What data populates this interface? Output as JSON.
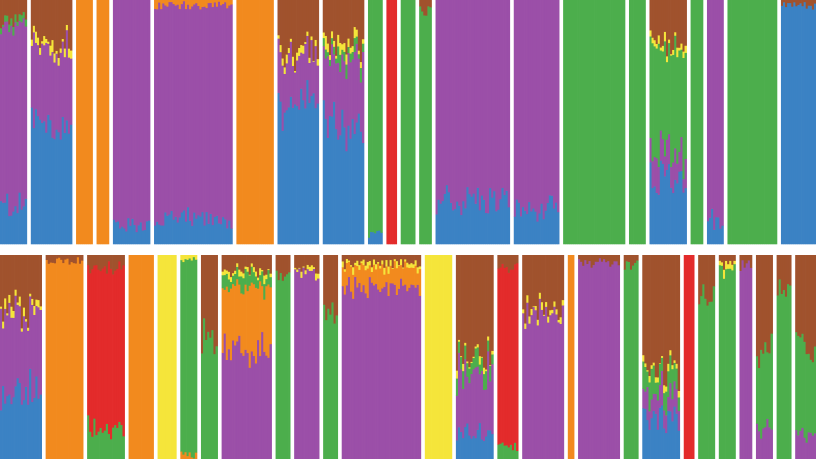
{
  "chart_data": {
    "type": "bar",
    "stacked": true,
    "normalized_to": 1,
    "title": "",
    "xlabel": "",
    "ylabel": "",
    "ylim": [
      0,
      1
    ],
    "grid": false,
    "legend": "none",
    "ancestry_colors": {
      "blue": "#3b82c4",
      "purple": "#9b4fa8",
      "orange": "#f28a1e",
      "brown": "#a0522d",
      "green": "#4cae4c",
      "red": "#e32b2b",
      "yellow": "#f5e53a"
    },
    "component_order": [
      "blue",
      "purple",
      "orange",
      "green",
      "red",
      "yellow",
      "brown"
    ],
    "rows": [
      {
        "populations": [
          {
            "n": 13,
            "profile": {
              "blue": 0.16,
              "purple": 0.74,
              "green": 0.02,
              "brown": 0.08
            }
          },
          {
            "n": 20,
            "profile": {
              "blue": 0.5,
              "purple": 0.3,
              "yellow": 0.03,
              "brown": 0.17
            }
          },
          {
            "n": 8,
            "profile": {
              "orange": 1.0
            }
          },
          {
            "n": 6,
            "profile": {
              "orange": 1.0
            }
          },
          {
            "n": 18,
            "profile": {
              "blue": 0.08,
              "purple": 0.92
            }
          },
          {
            "n": 38,
            "profile": {
              "blue": 0.1,
              "purple": 0.88,
              "orange": 0.02
            }
          },
          {
            "n": 18,
            "profile": {
              "orange": 1.0
            }
          },
          {
            "n": 20,
            "profile": {
              "blue": 0.58,
              "purple": 0.2,
              "yellow": 0.02,
              "brown": 0.2
            }
          },
          {
            "n": 20,
            "profile": {
              "blue": 0.48,
              "purple": 0.28,
              "green": 0.04,
              "yellow": 0.03,
              "brown": 0.17
            }
          },
          {
            "n": 7,
            "profile": {
              "green": 0.96,
              "blue": 0.04
            }
          },
          {
            "n": 5,
            "profile": {
              "red": 1.0
            }
          },
          {
            "n": 7,
            "profile": {
              "green": 1.0
            }
          },
          {
            "n": 6,
            "profile": {
              "green": 0.95,
              "brown": 0.05
            }
          },
          {
            "n": 36,
            "profile": {
              "blue": 0.18,
              "purple": 0.82
            }
          },
          {
            "n": 22,
            "profile": {
              "blue": 0.14,
              "purple": 0.86
            }
          },
          {
            "n": 30,
            "profile": {
              "green": 1.0
            }
          },
          {
            "n": 8,
            "profile": {
              "green": 1.0
            }
          },
          {
            "n": 18,
            "profile": {
              "blue": 0.28,
              "green": 0.42,
              "purple": 0.1,
              "yellow": 0.02,
              "brown": 0.18
            }
          },
          {
            "n": 6,
            "profile": {
              "green": 1.0
            }
          },
          {
            "n": 8,
            "profile": {
              "blue": 0.1,
              "purple": 0.9
            }
          },
          {
            "n": 24,
            "profile": {
              "green": 1.0
            }
          },
          {
            "n": 17,
            "profile": {
              "blue": 0.98,
              "brown": 0.02
            }
          }
        ]
      },
      {
        "populations": [
          {
            "n": 20,
            "profile": {
              "blue": 0.32,
              "purple": 0.38,
              "yellow": 0.03,
              "brown": 0.27
            }
          },
          {
            "n": 18,
            "profile": {
              "orange": 0.97,
              "brown": 0.03
            }
          },
          {
            "n": 18,
            "profile": {
              "red": 0.78,
              "green": 0.16,
              "brown": 0.06
            }
          },
          {
            "n": 12,
            "profile": {
              "orange": 1.0
            }
          },
          {
            "n": 9,
            "profile": {
              "yellow": 1.0
            }
          },
          {
            "n": 8,
            "profile": {
              "green": 0.96,
              "orange": 0.02,
              "yellow": 0.02
            }
          },
          {
            "n": 8,
            "profile": {
              "green": 0.6,
              "brown": 0.4
            }
          },
          {
            "n": 24,
            "profile": {
              "purple": 0.55,
              "orange": 0.3,
              "green": 0.06,
              "yellow": 0.02,
              "brown": 0.07
            }
          },
          {
            "n": 7,
            "profile": {
              "green": 0.9,
              "brown": 0.1
            }
          },
          {
            "n": 12,
            "profile": {
              "purple": 0.92,
              "yellow": 0.02,
              "brown": 0.06
            }
          },
          {
            "n": 7,
            "profile": {
              "green": 0.7,
              "brown": 0.3
            }
          },
          {
            "n": 38,
            "profile": {
              "purple": 0.84,
              "orange": 0.1,
              "yellow": 0.02,
              "brown": 0.04
            }
          },
          {
            "n": 13,
            "profile": {
              "yellow": 1.0
            }
          },
          {
            "n": 18,
            "profile": {
              "blue": 0.12,
              "purple": 0.3,
              "green": 0.06,
              "yellow": 0.02,
              "brown": 0.5
            }
          },
          {
            "n": 10,
            "profile": {
              "red": 0.88,
              "green": 0.06,
              "brown": 0.06
            }
          },
          {
            "n": 20,
            "profile": {
              "purple": 0.72,
              "yellow": 0.02,
              "brown": 0.26
            }
          },
          {
            "n": 3,
            "profile": {
              "orange": 1.0
            }
          },
          {
            "n": 20,
            "profile": {
              "purple": 0.96,
              "brown": 0.04
            }
          },
          {
            "n": 7,
            "profile": {
              "green": 0.95,
              "brown": 0.05
            }
          },
          {
            "n": 18,
            "profile": {
              "blue": 0.2,
              "purple": 0.12,
              "green": 0.1,
              "yellow": 0.02,
              "brown": 0.56
            }
          },
          {
            "n": 5,
            "profile": {
              "red": 1.0
            }
          },
          {
            "n": 8,
            "profile": {
              "green": 0.8,
              "brown": 0.2
            }
          },
          {
            "n": 8,
            "profile": {
              "green": 0.92,
              "yellow": 0.03,
              "brown": 0.05
            }
          },
          {
            "n": 6,
            "profile": {
              "purple": 0.95,
              "brown": 0.05
            }
          },
          {
            "n": 8,
            "profile": {
              "green": 0.4,
              "purple": 0.15,
              "brown": 0.45
            }
          },
          {
            "n": 7,
            "profile": {
              "green": 0.82,
              "brown": 0.18
            }
          },
          {
            "n": 10,
            "profile": {
              "green": 0.45,
              "purple": 0.1,
              "brown": 0.45
            }
          }
        ]
      }
    ]
  }
}
